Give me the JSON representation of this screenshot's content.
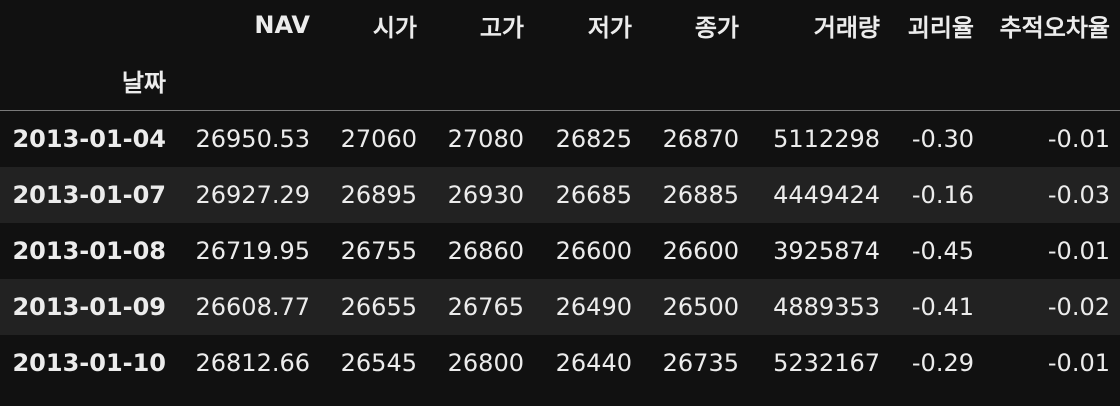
{
  "table": {
    "index_name": "날짜",
    "columns": [
      "NAV",
      "시가",
      "고가",
      "저가",
      "종가",
      "거래량",
      "괴리율",
      "추적오차율"
    ],
    "rows": [
      {
        "index": "2013-01-04",
        "values": [
          "26950.53",
          "27060",
          "27080",
          "26825",
          "26870",
          "5112298",
          "-0.30",
          "-0.01"
        ]
      },
      {
        "index": "2013-01-07",
        "values": [
          "26927.29",
          "26895",
          "26930",
          "26685",
          "26885",
          "4449424",
          "-0.16",
          "-0.03"
        ]
      },
      {
        "index": "2013-01-08",
        "values": [
          "26719.95",
          "26755",
          "26860",
          "26600",
          "26600",
          "3925874",
          "-0.45",
          "-0.01"
        ]
      },
      {
        "index": "2013-01-09",
        "values": [
          "26608.77",
          "26655",
          "26765",
          "26490",
          "26500",
          "4889353",
          "-0.41",
          "-0.02"
        ]
      },
      {
        "index": "2013-01-10",
        "values": [
          "26812.66",
          "26545",
          "26800",
          "26440",
          "26735",
          "5232167",
          "-0.29",
          "-0.01"
        ]
      }
    ]
  }
}
